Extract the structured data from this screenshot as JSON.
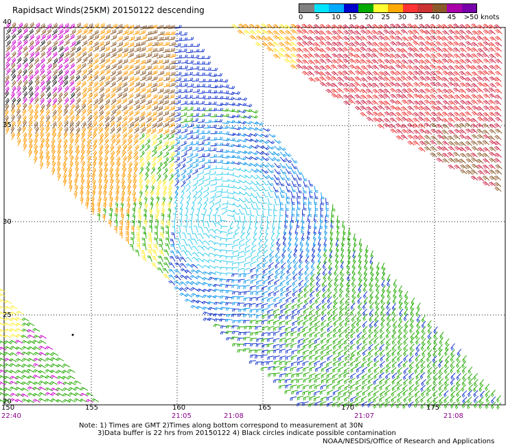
{
  "title": "Rapidsact Winds(25KM) 20150122 descending",
  "legend": {
    "labels": [
      "0",
      "5",
      "10",
      "15",
      "20",
      "25",
      "30",
      "35",
      "40",
      "45",
      ">50 knots"
    ],
    "colors": [
      "#808080",
      "#00e5ff",
      "#00aaff",
      "#0000cc",
      "#00aa00",
      "#ffff33",
      "#ffaa00",
      "#ff3333",
      "#cc3333",
      "#8b5a2b",
      "#aa00aa",
      "#7700aa"
    ]
  },
  "axes": {
    "lat_labels": [
      "40",
      "35",
      "30",
      "25",
      "20"
    ],
    "lon_labels": [
      "150",
      "155",
      "160",
      "165",
      "170",
      "175"
    ]
  },
  "pass_times": [
    {
      "text": "22:40",
      "color": "#880088"
    },
    {
      "text": "21:05",
      "color": "#880088"
    },
    {
      "text": "21:08",
      "color": "#880088"
    },
    {
      "text": "21:07",
      "color": "#880088"
    },
    {
      "text": "21:08",
      "color": "#880088"
    }
  ],
  "notes": {
    "line1": "Note: 1) Times are GMT 2)Times along bottom correspond to measurement at 30N",
    "line2": "3)Data buffer is 22 hrs from 20150122 4) Black circles indicate possible contamination"
  },
  "credit": "NOAA/NESDIS/Office of Research and Applications"
}
